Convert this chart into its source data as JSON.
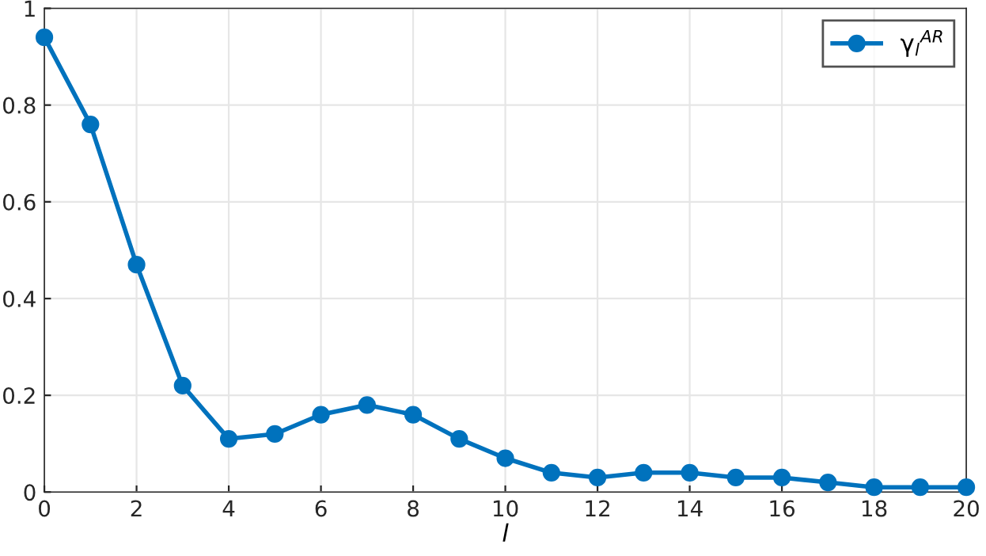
{
  "chart_data": {
    "type": "line",
    "xlabel": "l",
    "x": [
      0,
      1,
      2,
      3,
      4,
      5,
      6,
      7,
      8,
      9,
      10,
      11,
      12,
      13,
      14,
      15,
      16,
      17,
      18,
      19,
      20
    ],
    "series": [
      {
        "name": "γ$_{l}$$^{AR}$",
        "color": "#0072bd",
        "values": [
          0.94,
          0.76,
          0.47,
          0.22,
          0.11,
          0.12,
          0.16,
          0.18,
          0.16,
          0.11,
          0.07,
          0.04,
          0.03,
          0.04,
          0.04,
          0.03,
          0.03,
          0.02,
          0.01,
          0.01,
          0.01
        ]
      }
    ],
    "xlim": [
      0,
      20
    ],
    "xticks": [
      0,
      2,
      4,
      6,
      8,
      10,
      12,
      14,
      16,
      18,
      20
    ],
    "ylim": [
      0,
      1
    ],
    "yticks": [
      0,
      0.2,
      0.4,
      0.6,
      0.8,
      1
    ],
    "grid": true,
    "legend": "top right",
    "marker": "circle",
    "line_style": "solid"
  }
}
